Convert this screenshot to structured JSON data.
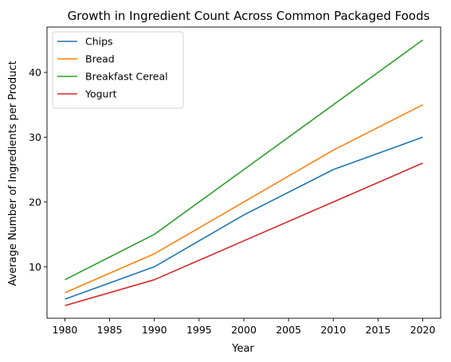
{
  "chart_data": {
    "type": "line",
    "title": "Growth in Ingredient Count Across Common Packaged Foods",
    "xlabel": "Year",
    "ylabel": "Average Number of Ingredients per Product",
    "x": [
      1980,
      1990,
      2000,
      2010,
      2020
    ],
    "xlim": [
      1978,
      2022
    ],
    "ylim": [
      2.05,
      47.0
    ],
    "xticks": [
      1980,
      1985,
      1990,
      1995,
      2000,
      2005,
      2010,
      2015,
      2020
    ],
    "yticks": [
      10,
      20,
      30,
      40
    ],
    "grid": false,
    "legend_position": "top-left",
    "series": [
      {
        "name": "Chips",
        "color": "#1f77b4",
        "values": [
          5,
          10,
          18,
          25,
          30
        ]
      },
      {
        "name": "Bread",
        "color": "#ff7f0e",
        "values": [
          6,
          12,
          20,
          28,
          35
        ]
      },
      {
        "name": "Breakfast Cereal",
        "color": "#2ca02c",
        "values": [
          8,
          15,
          25,
          35,
          45
        ]
      },
      {
        "name": "Yogurt",
        "color": "#d62728",
        "values": [
          4,
          8,
          14,
          20,
          26
        ]
      }
    ]
  }
}
